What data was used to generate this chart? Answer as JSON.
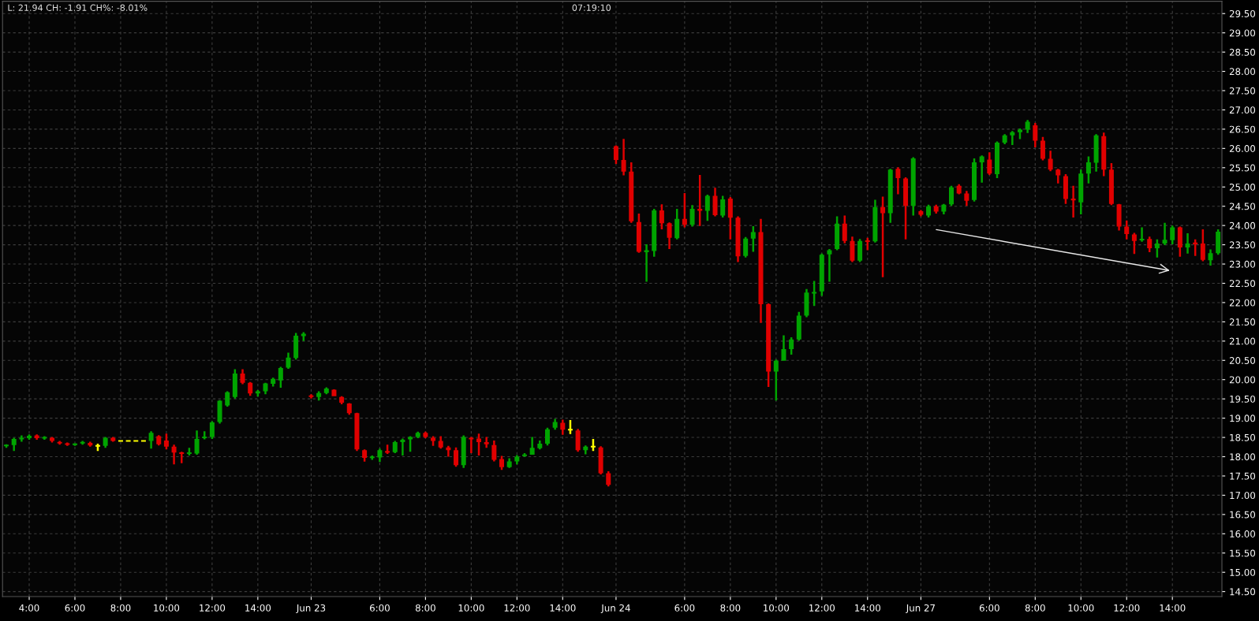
{
  "chart_data": {
    "type": "candlestick",
    "annotations": [
      "L: 21.94 CH: -1.91 CH%: -8.01%",
      "07:19:10"
    ],
    "ylim": [
      14.37,
      29.82
    ],
    "yticks": [
      {
        "value": 14.5,
        "label": "14.50"
      },
      {
        "value": 15,
        "label": "15.00"
      },
      {
        "value": 15.5,
        "label": "15.50"
      },
      {
        "value": 16,
        "label": "16.00"
      },
      {
        "value": 16.5,
        "label": "16.50"
      },
      {
        "value": 17,
        "label": "17.00"
      },
      {
        "value": 17.5,
        "label": "17.50"
      },
      {
        "value": 18,
        "label": "18.00"
      },
      {
        "value": 18.5,
        "label": "18.50"
      },
      {
        "value": 19,
        "label": "19.00"
      },
      {
        "value": 19.5,
        "label": "19.50"
      },
      {
        "value": 20,
        "label": "20.00"
      },
      {
        "value": 20.5,
        "label": "20.50"
      },
      {
        "value": 21,
        "label": "21.00"
      },
      {
        "value": 21.5,
        "label": "21.50"
      },
      {
        "value": 22,
        "label": "22.00"
      },
      {
        "value": 22.5,
        "label": "22.50"
      },
      {
        "value": 23,
        "label": "23.00"
      },
      {
        "value": 23.5,
        "label": "23.50"
      },
      {
        "value": 24,
        "label": "24.00"
      },
      {
        "value": 24.5,
        "label": "24.50"
      },
      {
        "value": 25,
        "label": "25.00"
      },
      {
        "value": 25.5,
        "label": "25.50"
      },
      {
        "value": 26,
        "label": "26.00"
      },
      {
        "value": 26.5,
        "label": "26.50"
      },
      {
        "value": 27,
        "label": "27.00"
      },
      {
        "value": 27.5,
        "label": "27.50"
      },
      {
        "value": 28,
        "label": "28.00"
      },
      {
        "value": 28.5,
        "label": "28.50"
      },
      {
        "value": 29,
        "label": "29.00"
      },
      {
        "value": 29.5,
        "label": "29.50"
      }
    ],
    "grid": true,
    "categories": [
      null,
      null,
      null,
      "4:00",
      null,
      null,
      null,
      null,
      null,
      "6:00",
      null,
      null,
      null,
      null,
      null,
      "8:00",
      null,
      null,
      null,
      null,
      null,
      "10:00",
      null,
      null,
      null,
      null,
      null,
      "12:00",
      null,
      null,
      null,
      null,
      null,
      "14:00",
      null,
      null,
      null,
      null,
      null,
      null,
      "Jun 23",
      null,
      null,
      null,
      null,
      null,
      null,
      null,
      null,
      "6:00",
      null,
      null,
      null,
      null,
      null,
      "8:00",
      null,
      null,
      null,
      null,
      null,
      "10:00",
      null,
      null,
      null,
      null,
      null,
      "12:00",
      null,
      null,
      null,
      null,
      null,
      "14:00",
      null,
      null,
      null,
      null,
      null,
      null,
      "Jun 24",
      null,
      null,
      null,
      null,
      null,
      null,
      null,
      null,
      "6:00",
      null,
      null,
      null,
      null,
      null,
      "8:00",
      null,
      null,
      null,
      null,
      null,
      "10:00",
      null,
      null,
      null,
      null,
      null,
      "12:00",
      null,
      null,
      null,
      null,
      null,
      "14:00",
      null,
      null,
      null,
      null,
      null,
      null,
      "Jun 27",
      null,
      null,
      null,
      null,
      null,
      null,
      null,
      null,
      "6:00",
      null,
      null,
      null,
      null,
      null,
      "8:00",
      null,
      null,
      null,
      null,
      null,
      "10:00",
      null,
      null,
      null,
      null,
      null,
      "12:00",
      null,
      null,
      null,
      null,
      null,
      "14:00",
      null,
      null,
      null,
      null,
      null,
      null
    ],
    "ohlc": [
      [
        18.28,
        18.32,
        18.23,
        18.3
      ],
      [
        18.3,
        18.49,
        18.15,
        18.46
      ],
      [
        18.45,
        18.55,
        18.39,
        18.49
      ],
      [
        18.48,
        18.58,
        18.44,
        18.54
      ],
      [
        18.55,
        18.58,
        18.44,
        18.48
      ],
      [
        18.48,
        18.53,
        18.44,
        18.5
      ],
      [
        18.49,
        18.51,
        18.37,
        18.41
      ],
      [
        18.38,
        18.41,
        18.31,
        18.35
      ],
      [
        18.35,
        18.37,
        18.28,
        18.31
      ],
      [
        18.31,
        18.35,
        18.28,
        18.33
      ],
      [
        18.35,
        18.41,
        18.31,
        18.38
      ],
      [
        18.36,
        18.39,
        18.26,
        18.29
      ],
      [
        18.28,
        18.34,
        18.15,
        18.28
      ],
      [
        18.28,
        18.51,
        18.23,
        18.49
      ],
      [
        18.49,
        18.51,
        18.39,
        18.41
      ],
      [
        18.41,
        18.41,
        18.41,
        18.41
      ],
      [
        18.41,
        18.41,
        18.41,
        18.41
      ],
      [
        18.41,
        18.41,
        18.41,
        18.41
      ],
      [
        18.41,
        18.41,
        18.41,
        18.41
      ],
      [
        18.41,
        18.66,
        18.21,
        18.62
      ],
      [
        18.53,
        18.56,
        18.29,
        18.32
      ],
      [
        18.42,
        18.6,
        18.19,
        18.26
      ],
      [
        18.26,
        18.31,
        17.8,
        18.11
      ],
      [
        18.11,
        18.13,
        17.83,
        18.07
      ],
      [
        18.07,
        18.23,
        18.03,
        18.11
      ],
      [
        18.08,
        18.68,
        18.05,
        18.46
      ],
      [
        18.49,
        18.66,
        18.45,
        18.51
      ],
      [
        18.51,
        18.92,
        18.46,
        18.89
      ],
      [
        18.9,
        19.47,
        18.86,
        19.45
      ],
      [
        19.33,
        19.7,
        19.3,
        19.67
      ],
      [
        19.55,
        20.27,
        19.51,
        20.16
      ],
      [
        20.16,
        20.27,
        19.88,
        19.92
      ],
      [
        19.92,
        19.94,
        19.58,
        19.64
      ],
      [
        19.64,
        19.73,
        19.56,
        19.7
      ],
      [
        19.7,
        19.92,
        19.62,
        19.9
      ],
      [
        19.89,
        20.05,
        19.82,
        20.02
      ],
      [
        19.98,
        20.33,
        19.79,
        20.3
      ],
      [
        20.31,
        20.7,
        20.28,
        20.57
      ],
      [
        20.56,
        21.21,
        20.52,
        21.14
      ],
      [
        21.13,
        21.23,
        21.0,
        21.19
      ],
      [
        19.59,
        19.62,
        19.51,
        19.55
      ],
      [
        19.55,
        19.7,
        19.46,
        19.65
      ],
      [
        19.65,
        19.8,
        19.62,
        19.77
      ],
      [
        19.74,
        19.75,
        19.57,
        19.57
      ],
      [
        19.55,
        19.57,
        19.36,
        19.4
      ],
      [
        19.38,
        19.39,
        19.09,
        19.13
      ],
      [
        19.13,
        19.14,
        18.15,
        18.19
      ],
      [
        18.17,
        18.19,
        17.87,
        17.97
      ],
      [
        17.97,
        18.03,
        17.92,
        18.0
      ],
      [
        17.98,
        18.21,
        17.86,
        18.17
      ],
      [
        18.15,
        18.31,
        18.07,
        18.1
      ],
      [
        18.12,
        18.41,
        18.09,
        18.38
      ],
      [
        18.38,
        18.47,
        18.03,
        18.44
      ],
      [
        18.45,
        18.53,
        18.13,
        18.51
      ],
      [
        18.51,
        18.65,
        18.48,
        18.62
      ],
      [
        18.62,
        18.65,
        18.48,
        18.51
      ],
      [
        18.49,
        18.53,
        18.28,
        18.41
      ],
      [
        18.41,
        18.53,
        18.21,
        18.24
      ],
      [
        18.24,
        18.28,
        18.0,
        18.17
      ],
      [
        18.17,
        18.24,
        17.74,
        17.78
      ],
      [
        17.78,
        18.55,
        17.71,
        18.51
      ],
      [
        18.49,
        18.51,
        18.09,
        18.45
      ],
      [
        18.47,
        18.6,
        18.03,
        18.38
      ],
      [
        18.38,
        18.51,
        18.23,
        18.32
      ],
      [
        18.3,
        18.42,
        17.88,
        17.92
      ],
      [
        17.94,
        18.02,
        17.66,
        17.73
      ],
      [
        17.73,
        17.96,
        17.71,
        17.88
      ],
      [
        17.88,
        18.04,
        17.8,
        18.0
      ],
      [
        18.02,
        18.09,
        18.0,
        18.05
      ],
      [
        18.05,
        18.51,
        18.05,
        18.23
      ],
      [
        18.22,
        18.42,
        18.19,
        18.34
      ],
      [
        18.34,
        18.75,
        18.29,
        18.71
      ],
      [
        18.75,
        18.98,
        18.7,
        18.9
      ],
      [
        18.88,
        18.96,
        18.57,
        18.7
      ],
      [
        18.7,
        18.95,
        18.59,
        18.7
      ],
      [
        18.68,
        18.72,
        18.13,
        18.17
      ],
      [
        18.17,
        18.29,
        18.06,
        18.26
      ],
      [
        18.26,
        18.46,
        18.15,
        18.26
      ],
      [
        18.24,
        18.27,
        17.54,
        17.57
      ],
      [
        17.57,
        17.62,
        17.23,
        17.27
      ],
      [
        26.06,
        26.08,
        25.6,
        25.7
      ],
      [
        25.7,
        26.25,
        25.3,
        25.4
      ],
      [
        25.4,
        25.64,
        24.07,
        24.11
      ],
      [
        24.09,
        24.31,
        23.29,
        23.32
      ],
      [
        23.31,
        23.51,
        22.54,
        23.36
      ],
      [
        23.34,
        24.43,
        23.19,
        24.39
      ],
      [
        24.39,
        24.55,
        23.9,
        24.06
      ],
      [
        24.06,
        24.08,
        23.39,
        23.68
      ],
      [
        23.67,
        24.43,
        23.64,
        24.17
      ],
      [
        24.17,
        24.84,
        23.95,
        24.02
      ],
      [
        24.02,
        24.53,
        23.97,
        24.43
      ],
      [
        24.43,
        25.31,
        23.99,
        24.38
      ],
      [
        24.38,
        24.8,
        24.12,
        24.77
      ],
      [
        24.77,
        24.98,
        24.24,
        24.27
      ],
      [
        24.26,
        24.77,
        24.21,
        24.68
      ],
      [
        24.7,
        24.74,
        23.64,
        24.2
      ],
      [
        24.2,
        24.24,
        23.05,
        23.2
      ],
      [
        23.21,
        23.7,
        23.17,
        23.66
      ],
      [
        23.66,
        23.98,
        23.32,
        23.83
      ],
      [
        23.83,
        24.17,
        21.47,
        21.96
      ],
      [
        21.96,
        21.98,
        19.81,
        20.21
      ],
      [
        20.21,
        20.52,
        19.46,
        20.49
      ],
      [
        20.49,
        21.15,
        20.49,
        20.79
      ],
      [
        20.79,
        21.1,
        20.65,
        21.04
      ],
      [
        21.04,
        21.76,
        21.01,
        21.66
      ],
      [
        21.66,
        22.35,
        21.62,
        22.26
      ],
      [
        22.24,
        22.56,
        21.91,
        22.27
      ],
      [
        22.29,
        23.27,
        22.17,
        23.24
      ],
      [
        23.25,
        23.39,
        22.54,
        23.36
      ],
      [
        23.39,
        24.24,
        23.36,
        24.05
      ],
      [
        24.05,
        24.26,
        23.54,
        23.6
      ],
      [
        23.6,
        23.71,
        23.05,
        23.09
      ],
      [
        23.09,
        23.65,
        23.05,
        23.6
      ],
      [
        23.61,
        23.68,
        23.36,
        23.58
      ],
      [
        23.59,
        24.67,
        23.56,
        24.48
      ],
      [
        24.48,
        24.75,
        22.66,
        24.32
      ],
      [
        24.32,
        25.47,
        24.07,
        25.45
      ],
      [
        25.47,
        25.51,
        24.81,
        25.23
      ],
      [
        25.22,
        25.25,
        23.64,
        24.51
      ],
      [
        24.51,
        25.77,
        24.26,
        25.74
      ],
      [
        24.37,
        24.4,
        24.24,
        24.28
      ],
      [
        24.26,
        24.54,
        24.21,
        24.5
      ],
      [
        24.5,
        24.54,
        24.31,
        24.36
      ],
      [
        24.36,
        24.56,
        24.29,
        24.54
      ],
      [
        24.55,
        25.03,
        24.51,
        24.99
      ],
      [
        25.03,
        25.07,
        24.81,
        24.83
      ],
      [
        24.83,
        24.9,
        24.51,
        24.64
      ],
      [
        24.66,
        25.74,
        24.62,
        25.64
      ],
      [
        25.64,
        25.82,
        25.11,
        25.79
      ],
      [
        25.71,
        25.9,
        25.31,
        25.35
      ],
      [
        25.33,
        26.18,
        25.23,
        26.15
      ],
      [
        26.15,
        26.37,
        26.11,
        26.34
      ],
      [
        26.34,
        26.45,
        26.09,
        26.42
      ],
      [
        26.42,
        26.52,
        26.24,
        26.49
      ],
      [
        26.49,
        26.74,
        26.4,
        26.69
      ],
      [
        26.6,
        26.66,
        26.03,
        26.2
      ],
      [
        26.2,
        26.3,
        25.69,
        25.73
      ],
      [
        25.73,
        25.94,
        25.41,
        25.45
      ],
      [
        25.45,
        25.47,
        25.09,
        25.3
      ],
      [
        25.28,
        25.33,
        24.56,
        24.69
      ],
      [
        24.7,
        25.03,
        24.21,
        24.65
      ],
      [
        24.6,
        25.45,
        24.29,
        25.35
      ],
      [
        25.35,
        25.79,
        25.09,
        25.64
      ],
      [
        25.63,
        26.37,
        25.4,
        26.34
      ],
      [
        26.32,
        26.41,
        25.28,
        25.45
      ],
      [
        25.45,
        25.62,
        24.53,
        24.56
      ],
      [
        24.55,
        24.56,
        23.87,
        23.97
      ],
      [
        23.97,
        24.13,
        23.64,
        23.78
      ],
      [
        23.77,
        23.81,
        23.26,
        23.6
      ],
      [
        23.62,
        23.95,
        23.58,
        23.65
      ],
      [
        23.65,
        23.71,
        23.31,
        23.41
      ],
      [
        23.41,
        23.64,
        23.17,
        23.53
      ],
      [
        23.53,
        24.07,
        23.49,
        23.63
      ],
      [
        23.62,
        24.0,
        23.51,
        23.95
      ],
      [
        23.95,
        23.97,
        23.19,
        23.43
      ],
      [
        23.43,
        23.8,
        23.27,
        23.53
      ],
      [
        23.56,
        23.64,
        23.21,
        23.51
      ],
      [
        23.53,
        23.9,
        23.07,
        23.11
      ],
      [
        23.1,
        23.38,
        22.96,
        23.28
      ],
      [
        23.28,
        23.9,
        23.24,
        23.84
      ]
    ],
    "colors": [
      "#00a400",
      "#00a400",
      "#00a400",
      "#00a400",
      "#e00000",
      "#00a400",
      "#e00000",
      "#e00000",
      "#e00000",
      "#00a400",
      "#00a400",
      "#e00000",
      "#ffff00",
      "#00a400",
      "#e00000",
      "#ffff00",
      "#ffff00",
      "#ffff00",
      "#ffff00",
      "#00a400",
      "#e00000",
      "#e00000",
      "#e00000",
      "#e00000",
      "#00a400",
      "#00a400",
      "#00a400",
      "#00a400",
      "#00a400",
      "#00a400",
      "#00a400",
      "#e00000",
      "#e00000",
      "#00a400",
      "#00a400",
      "#00a400",
      "#00a400",
      "#00a400",
      "#00a400",
      "#00a400",
      "#e00000",
      "#00a400",
      "#00a400",
      "#e00000",
      "#e00000",
      "#e00000",
      "#e00000",
      "#e00000",
      "#00a400",
      "#00a400",
      "#e00000",
      "#00a400",
      "#00a400",
      "#00a400",
      "#00a400",
      "#e00000",
      "#e00000",
      "#e00000",
      "#e00000",
      "#e00000",
      "#00a400",
      "#e00000",
      "#e00000",
      "#e00000",
      "#e00000",
      "#e00000",
      "#00a400",
      "#00a400",
      "#00a400",
      "#00a400",
      "#00a400",
      "#00a400",
      "#00a400",
      "#e00000",
      "#ffff00",
      "#e00000",
      "#00a400",
      "#ffff00",
      "#e00000",
      "#e00000",
      "#e00000",
      "#e00000",
      "#e00000",
      "#e00000",
      "#00a400",
      "#00a400",
      "#e00000",
      "#e00000",
      "#00a400",
      "#e00000",
      "#00a400",
      "#e00000",
      "#00a400",
      "#e00000",
      "#00a400",
      "#e00000",
      "#e00000",
      "#00a400",
      "#00a400",
      "#e00000",
      "#e00000",
      "#00a400",
      "#00a400",
      "#00a400",
      "#00a400",
      "#00a400",
      "#00a400",
      "#00a400",
      "#00a400",
      "#00a400",
      "#e00000",
      "#e00000",
      "#00a400",
      "#e00000",
      "#00a400",
      "#e00000",
      "#00a400",
      "#e00000",
      "#e00000",
      "#00a400",
      "#e00000",
      "#00a400",
      "#e00000",
      "#00a400",
      "#00a400",
      "#e00000",
      "#e00000",
      "#00a400",
      "#00a400",
      "#e00000",
      "#00a400",
      "#00a400",
      "#00a400",
      "#00a400",
      "#00a400",
      "#e00000",
      "#e00000",
      "#e00000",
      "#e00000",
      "#e00000",
      "#e00000",
      "#00a400",
      "#00a400",
      "#00a400",
      "#e00000",
      "#e00000",
      "#e00000",
      "#e00000",
      "#e00000",
      "#00a400",
      "#e00000",
      "#00a400",
      "#00a400",
      "#00a400",
      "#e00000",
      "#00a400",
      "#e00000",
      "#e00000",
      "#00a400",
      "#00a400"
    ]
  }
}
